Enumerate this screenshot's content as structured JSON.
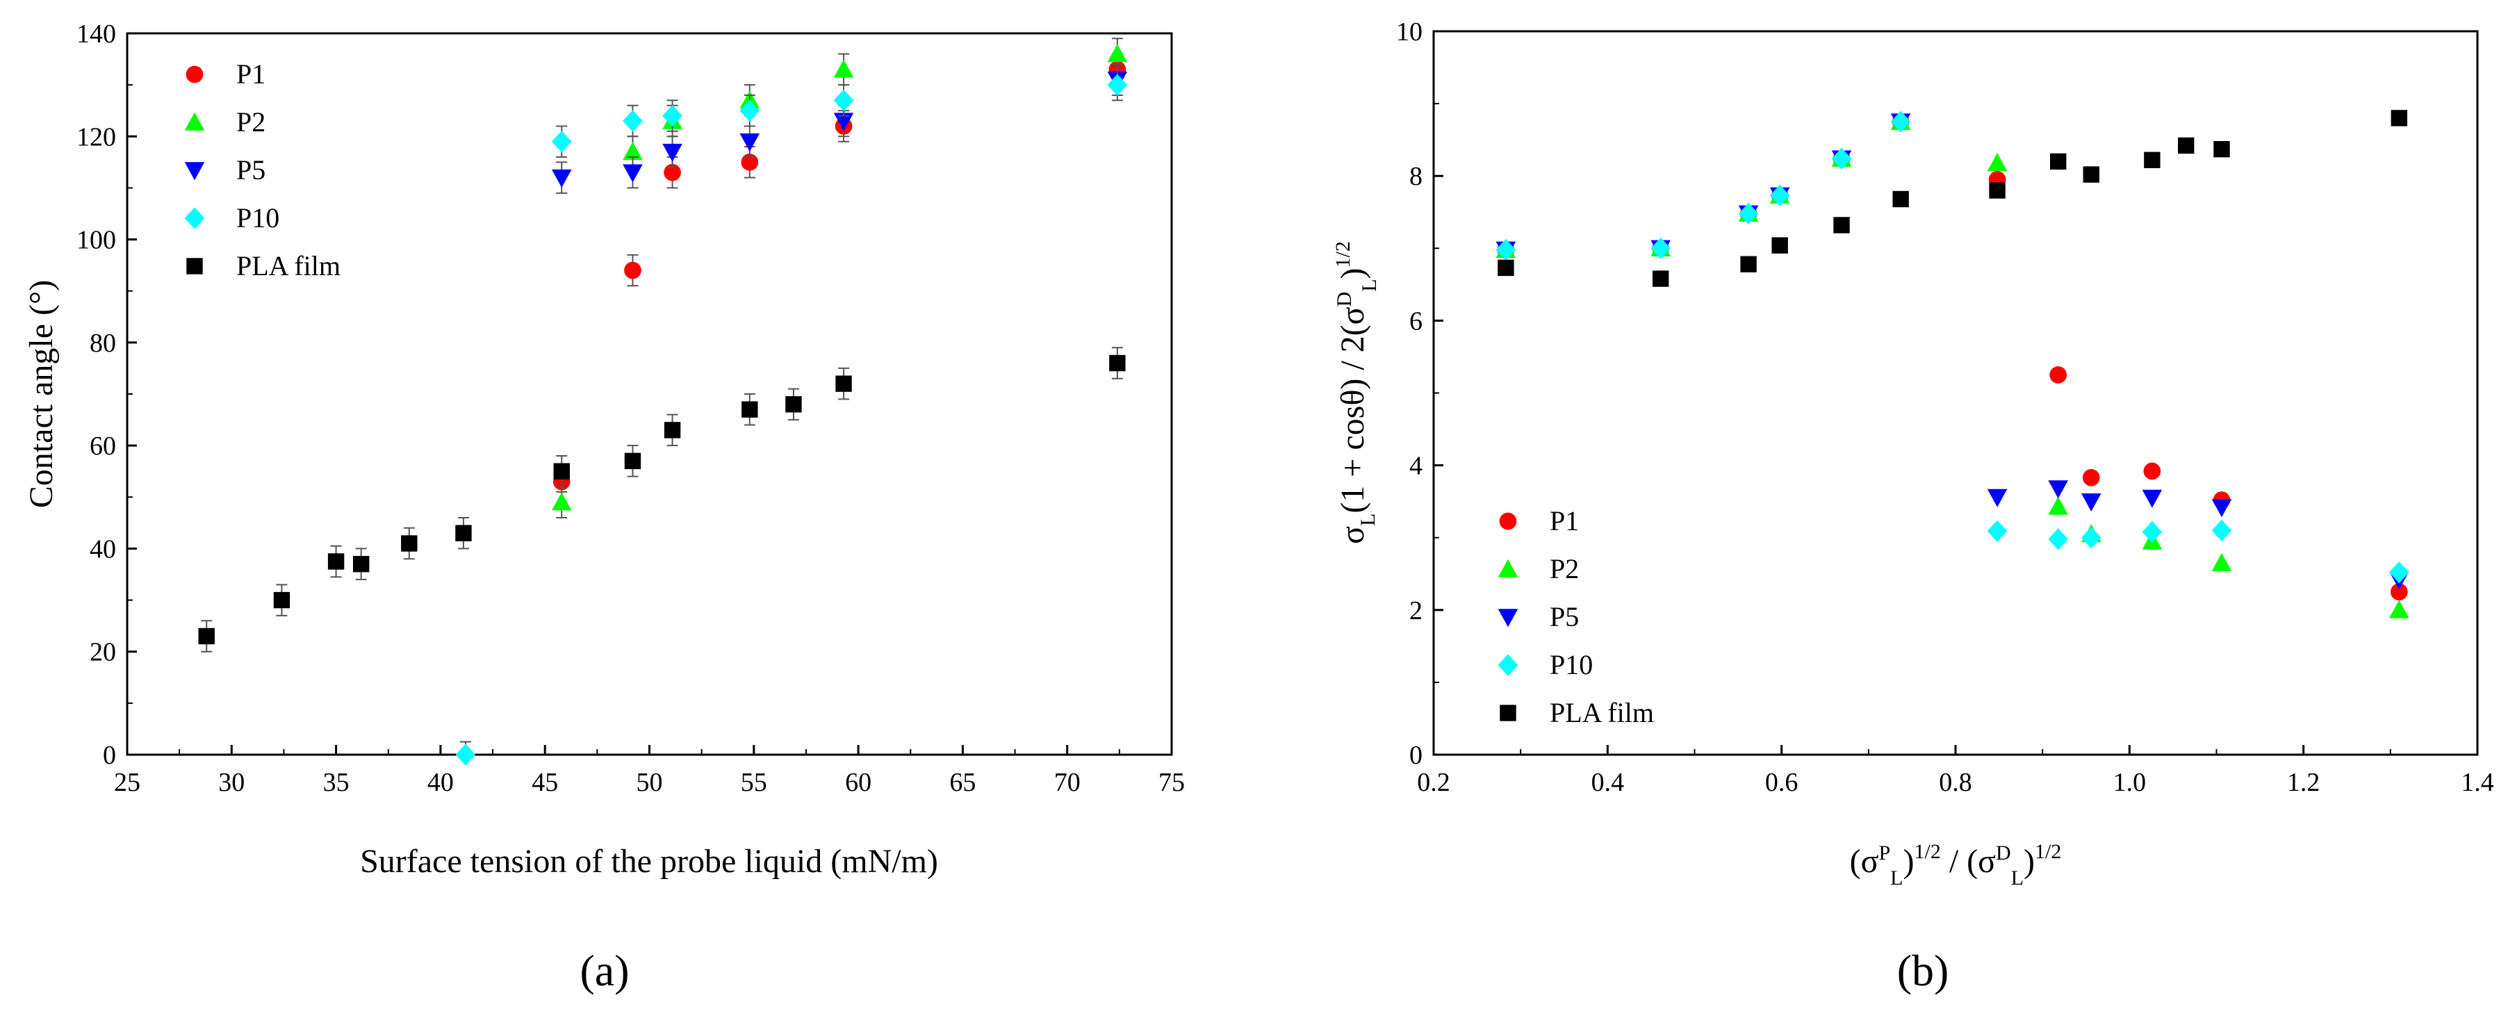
{
  "chart_data": [
    {
      "type": "scatter",
      "panel_label": "(a)",
      "xlabel": "Surface tension of the probe liquid (mN/m)",
      "ylabel": "Contact angle (°)",
      "xlim": [
        25,
        75
      ],
      "ylim": [
        0,
        140
      ],
      "xticks": [
        25,
        30,
        35,
        40,
        45,
        50,
        55,
        60,
        65,
        70,
        75
      ],
      "yticks": [
        0,
        20,
        40,
        60,
        80,
        100,
        120,
        140
      ],
      "legend_position": "top-left",
      "series": [
        {
          "name": "P1",
          "color": "#ff0000",
          "marker": "circle",
          "points": [
            [
              45.8,
              53
            ],
            [
              49.2,
              94
            ],
            [
              51.1,
              113
            ],
            [
              54.8,
              115
            ],
            [
              59.3,
              122
            ],
            [
              72.4,
              133
            ]
          ],
          "errors": [
            2,
            3,
            3,
            3,
            3,
            3
          ]
        },
        {
          "name": "P2",
          "color": "#00ff00",
          "marker": "triangle-up",
          "points": [
            [
              45.8,
              49
            ],
            [
              49.2,
              117
            ],
            [
              51.1,
              123
            ],
            [
              54.8,
              127
            ],
            [
              59.3,
              133
            ],
            [
              72.4,
              136
            ]
          ],
          "errors": [
            3,
            3,
            3,
            3,
            3,
            3
          ]
        },
        {
          "name": "P5",
          "color": "#0000ff",
          "marker": "triangle-down",
          "points": [
            [
              45.8,
              112
            ],
            [
              49.2,
              113
            ],
            [
              51.1,
              117
            ],
            [
              54.8,
              119
            ],
            [
              59.3,
              123
            ],
            [
              72.4,
              131
            ]
          ],
          "errors": [
            3,
            3,
            3,
            3,
            3,
            3
          ]
        },
        {
          "name": "P10",
          "color": "#00ffff",
          "marker": "diamond",
          "points": [
            [
              41.2,
              0
            ],
            [
              45.8,
              119
            ],
            [
              49.2,
              123
            ],
            [
              51.1,
              124
            ],
            [
              54.8,
              125
            ],
            [
              59.3,
              127
            ],
            [
              72.4,
              130
            ]
          ],
          "errors": [
            2.5,
            3,
            3,
            3,
            3,
            3,
            3
          ]
        },
        {
          "name": "PLA film",
          "color": "#000000",
          "marker": "square",
          "points": [
            [
              28.8,
              23
            ],
            [
              32.4,
              30
            ],
            [
              35.0,
              37.5
            ],
            [
              36.2,
              37
            ],
            [
              38.5,
              41
            ],
            [
              41.1,
              43
            ],
            [
              45.8,
              55
            ],
            [
              49.2,
              57
            ],
            [
              51.1,
              63
            ],
            [
              54.8,
              67
            ],
            [
              56.9,
              68
            ],
            [
              59.3,
              72
            ],
            [
              72.4,
              76
            ]
          ],
          "errors": [
            3,
            3,
            3,
            3,
            3,
            3,
            3,
            3,
            3,
            3,
            3,
            3,
            3
          ]
        }
      ]
    },
    {
      "type": "scatter",
      "panel_label": "(b)",
      "xlabel_parts": [
        "(σ",
        "P",
        "L",
        ")",
        "1/2",
        " / (σ",
        "D",
        "L",
        ")",
        "1/2"
      ],
      "ylabel_parts": [
        "σ",
        "L",
        "(1 + cosθ) / 2(σ",
        "D",
        "L",
        ")",
        "1/2"
      ],
      "xlim": [
        0.2,
        1.4
      ],
      "ylim": [
        0,
        10
      ],
      "xticks": [
        0.2,
        0.4,
        0.6,
        0.8,
        1.0,
        1.2,
        1.4
      ],
      "xtick_labels": [
        "0.2",
        "0.4",
        "0.6",
        "0.8",
        "1.0",
        "1.2",
        "1.4"
      ],
      "yticks": [
        0,
        2,
        4,
        6,
        8,
        10
      ],
      "legend_position": "bottom-left",
      "series": [
        {
          "name": "P1",
          "color": "#ff0000",
          "marker": "circle",
          "points": [
            [
              0.283,
              6.98
            ],
            [
              0.461,
              7.0
            ],
            [
              0.562,
              7.48
            ],
            [
              0.598,
              7.73
            ],
            [
              0.669,
              8.24
            ],
            [
              0.737,
              8.75
            ],
            [
              0.848,
              7.95
            ],
            [
              0.918,
              5.25
            ],
            [
              0.956,
              3.83
            ],
            [
              1.026,
              3.92
            ],
            [
              1.106,
              3.52
            ],
            [
              1.31,
              2.25
            ]
          ]
        },
        {
          "name": "P2",
          "color": "#00ff00",
          "marker": "triangle-up",
          "points": [
            [
              0.283,
              6.98
            ],
            [
              0.461,
              7.0
            ],
            [
              0.562,
              7.48
            ],
            [
              0.598,
              7.73
            ],
            [
              0.669,
              8.24
            ],
            [
              0.737,
              8.75
            ],
            [
              0.848,
              8.18
            ],
            [
              0.918,
              3.43
            ],
            [
              0.956,
              3.05
            ],
            [
              1.026,
              2.95
            ],
            [
              1.106,
              2.65
            ],
            [
              1.31,
              2.0
            ]
          ]
        },
        {
          "name": "P5",
          "color": "#0000ff",
          "marker": "triangle-down",
          "points": [
            [
              0.283,
              6.98
            ],
            [
              0.461,
              7.0
            ],
            [
              0.562,
              7.48
            ],
            [
              0.598,
              7.73
            ],
            [
              0.669,
              8.24
            ],
            [
              0.737,
              8.75
            ],
            [
              0.848,
              3.56
            ],
            [
              0.918,
              3.68
            ],
            [
              0.956,
              3.5
            ],
            [
              1.026,
              3.55
            ],
            [
              1.106,
              3.42
            ],
            [
              1.31,
              2.42
            ]
          ]
        },
        {
          "name": "P10",
          "color": "#00ffff",
          "marker": "diamond",
          "points": [
            [
              0.283,
              6.98
            ],
            [
              0.461,
              7.0
            ],
            [
              0.562,
              7.48
            ],
            [
              0.598,
              7.73
            ],
            [
              0.669,
              8.24
            ],
            [
              0.737,
              8.75
            ],
            [
              0.848,
              3.09
            ],
            [
              0.918,
              2.98
            ],
            [
              0.956,
              3.0
            ],
            [
              1.026,
              3.08
            ],
            [
              1.106,
              3.1
            ],
            [
              1.31,
              2.52
            ]
          ]
        },
        {
          "name": "PLA film",
          "color": "#000000",
          "marker": "square",
          "points": [
            [
              0.283,
              6.73
            ],
            [
              0.461,
              6.58
            ],
            [
              0.562,
              6.78
            ],
            [
              0.598,
              7.04
            ],
            [
              0.669,
              7.32
            ],
            [
              0.737,
              7.68
            ],
            [
              0.848,
              7.8
            ],
            [
              0.918,
              8.2
            ],
            [
              0.956,
              8.02
            ],
            [
              1.026,
              8.22
            ],
            [
              1.065,
              8.42
            ],
            [
              1.106,
              8.37
            ],
            [
              1.31,
              8.8
            ]
          ]
        }
      ]
    }
  ]
}
